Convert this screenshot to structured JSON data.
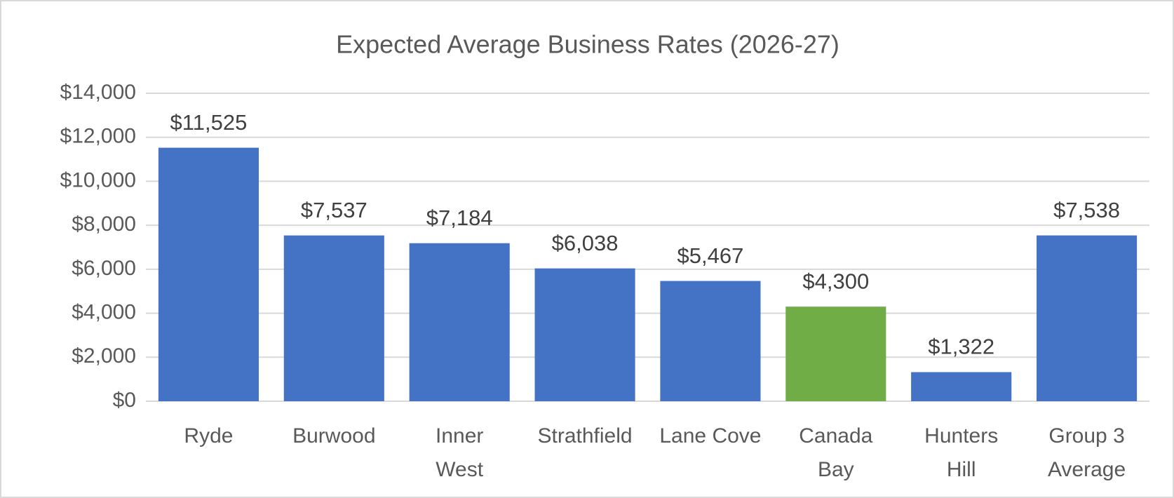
{
  "chart_data": {
    "type": "bar",
    "title": "Expected Average Business Rates  (2026-27)",
    "categories": [
      [
        "Ryde"
      ],
      [
        "Burwood"
      ],
      [
        "Inner",
        "West"
      ],
      [
        "Strathfield"
      ],
      [
        "Lane Cove"
      ],
      [
        "Canada",
        "Bay"
      ],
      [
        "Hunters",
        "Hill"
      ],
      [
        "Group 3",
        "Average"
      ]
    ],
    "values": [
      11525,
      7537,
      7184,
      6038,
      5467,
      4300,
      1322,
      7538
    ],
    "value_labels": [
      "$11,525",
      "$7,537",
      "$7,184",
      "$6,038",
      "$5,467",
      "$4,300",
      "$1,322",
      "$7,538"
    ],
    "colors": [
      "#4472c4",
      "#4472c4",
      "#4472c4",
      "#4472c4",
      "#4472c4",
      "#70ad47",
      "#4472c4",
      "#4472c4"
    ],
    "ylim": [
      0,
      14000
    ],
    "yticks": [
      {
        "value": 0,
        "label": "$0"
      },
      {
        "value": 2000,
        "label": "$2,000"
      },
      {
        "value": 4000,
        "label": "$4,000"
      },
      {
        "value": 6000,
        "label": "$6,000"
      },
      {
        "value": 8000,
        "label": "$8,000"
      },
      {
        "value": 10000,
        "label": "$10,000"
      },
      {
        "value": 12000,
        "label": "$12,000"
      },
      {
        "value": 14000,
        "label": "$14,000"
      }
    ],
    "grid": true
  }
}
